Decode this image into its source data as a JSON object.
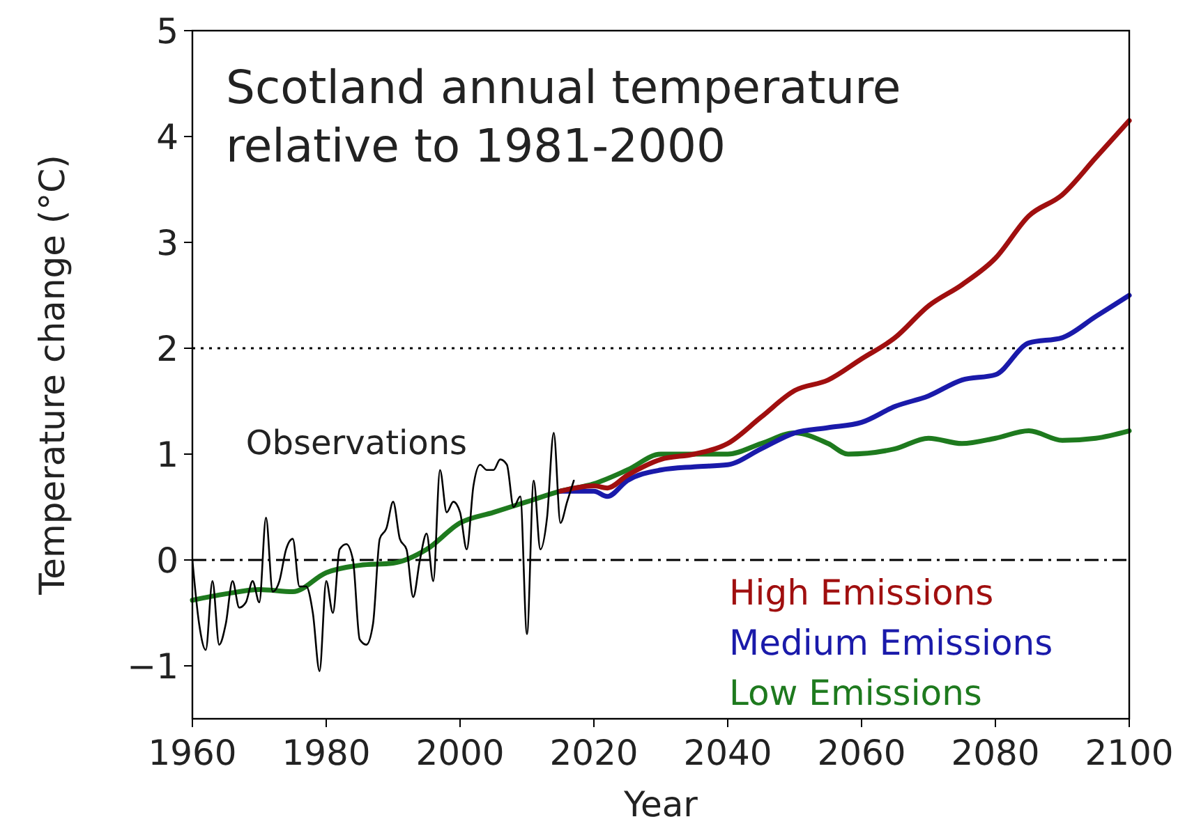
{
  "chart_data": {
    "type": "line",
    "title": "Scotland annual temperature\nrelative to 1981-2000",
    "xlabel": "Year",
    "ylabel": "Temperature change (°C)",
    "xlim": [
      1960,
      2100
    ],
    "xticks": [
      1960,
      1980,
      2000,
      2020,
      2040,
      2060,
      2080,
      2100
    ],
    "ylim": [
      -1.5,
      5
    ],
    "yticks": [
      {
        "value": -1,
        "label": "−1"
      },
      0,
      1,
      2,
      3,
      4,
      5
    ],
    "grid": false,
    "legend": "bottom right",
    "ref_lines": [
      {
        "axis": "y",
        "value": 2,
        "color": "#000000",
        "line_style": "dotted"
      },
      {
        "axis": "y",
        "value": 0,
        "color": "#000000",
        "line_style": "dashdot"
      }
    ],
    "series": [
      {
        "name": "Low Emissions",
        "color": "#1e7a1e",
        "x": [
          1960,
          1965,
          1970,
          1975,
          1980,
          1985,
          1990,
          1995,
          2000,
          2005,
          2010,
          2015,
          2020,
          2025,
          2030,
          2035,
          2040,
          2045,
          2050,
          2055,
          2058,
          2065,
          2070,
          2075,
          2080,
          2085,
          2090,
          2095,
          2100
        ],
        "values": [
          -0.38,
          -0.32,
          -0.28,
          -0.3,
          -0.12,
          -0.05,
          -0.03,
          0.1,
          0.35,
          0.45,
          0.55,
          0.65,
          0.72,
          0.85,
          1.0,
          1.0,
          1.0,
          1.1,
          1.2,
          1.1,
          1.0,
          1.05,
          1.15,
          1.1,
          1.15,
          1.22,
          1.13,
          1.15,
          1.22
        ]
      },
      {
        "name": "Medium Emissions",
        "color": "#1a1aaa",
        "x": [
          2015,
          2020,
          2022,
          2025,
          2030,
          2035,
          2040,
          2045,
          2050,
          2055,
          2060,
          2065,
          2070,
          2075,
          2080,
          2085,
          2090,
          2095,
          2100
        ],
        "values": [
          0.65,
          0.65,
          0.6,
          0.75,
          0.85,
          0.88,
          0.9,
          1.05,
          1.2,
          1.25,
          1.3,
          1.45,
          1.55,
          1.7,
          1.75,
          2.05,
          2.1,
          2.3,
          2.5
        ]
      },
      {
        "name": "High Emissions",
        "color": "#a00f0f",
        "x": [
          2015,
          2020,
          2022,
          2025,
          2030,
          2035,
          2040,
          2045,
          2050,
          2055,
          2060,
          2065,
          2070,
          2075,
          2080,
          2085,
          2090,
          2095,
          2100
        ],
        "values": [
          0.65,
          0.7,
          0.68,
          0.8,
          0.95,
          1.0,
          1.1,
          1.35,
          1.6,
          1.7,
          1.9,
          2.1,
          2.4,
          2.6,
          2.85,
          3.25,
          3.45,
          3.8,
          4.15
        ]
      },
      {
        "name": "Observations",
        "color": "#000000",
        "x": [
          1960,
          1961,
          1962,
          1963,
          1964,
          1965,
          1966,
          1967,
          1968,
          1969,
          1970,
          1971,
          1972,
          1973,
          1974,
          1975,
          1976,
          1977,
          1978,
          1979,
          1980,
          1981,
          1982,
          1983,
          1984,
          1985,
          1986,
          1987,
          1988,
          1989,
          1990,
          1991,
          1992,
          1993,
          1994,
          1995,
          1996,
          1997,
          1998,
          1999,
          2000,
          2001,
          2002,
          2003,
          2004,
          2005,
          2006,
          2007,
          2008,
          2009,
          2010,
          2011,
          2012,
          2013,
          2014,
          2015,
          2016,
          2017
        ],
        "values": [
          0.0,
          -0.6,
          -0.85,
          -0.2,
          -0.8,
          -0.6,
          -0.2,
          -0.45,
          -0.4,
          -0.2,
          -0.4,
          0.4,
          -0.3,
          -0.2,
          0.1,
          0.2,
          -0.25,
          -0.25,
          -0.5,
          -1.05,
          -0.2,
          -0.5,
          0.1,
          0.15,
          0.0,
          -0.75,
          -0.8,
          -0.6,
          0.2,
          0.3,
          0.55,
          0.2,
          0.1,
          -0.35,
          0.0,
          0.25,
          -0.2,
          0.85,
          0.45,
          0.55,
          0.45,
          0.1,
          0.7,
          0.9,
          0.85,
          0.85,
          0.95,
          0.9,
          0.5,
          0.6,
          -0.7,
          0.75,
          0.1,
          0.4,
          1.2,
          0.35,
          0.55,
          0.75
        ]
      }
    ]
  }
}
